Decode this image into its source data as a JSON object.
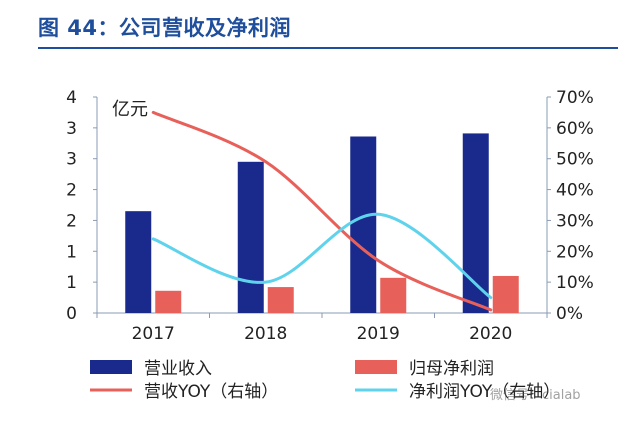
{
  "header": {
    "title": "图 44：公司营收及净利润"
  },
  "watermark": {
    "text": "微信号：cialab"
  },
  "chart_data": {
    "type": "bar",
    "categories": [
      "2017",
      "2018",
      "2019",
      "2020"
    ],
    "unit_label": "亿元",
    "y_left": {
      "min": 0,
      "max": 3.5,
      "tick_values": [
        0,
        0.5,
        1,
        1.5,
        2,
        2.5,
        3,
        3.5
      ],
      "tick_labels": [
        "0",
        "1",
        "1",
        "2",
        "2",
        "3",
        "3",
        "4"
      ]
    },
    "y_right": {
      "min": 0,
      "max": 70,
      "tick_values": [
        0,
        10,
        20,
        30,
        40,
        50,
        60,
        70
      ],
      "tick_labels": [
        "0%",
        "10%",
        "20%",
        "30%",
        "40%",
        "50%",
        "60%",
        "70%"
      ]
    },
    "series": [
      {
        "name": "营业收入",
        "kind": "bar",
        "axis": "left",
        "color": "#1a2a8c",
        "values": [
          1.65,
          2.45,
          2.86,
          2.91
        ]
      },
      {
        "name": "归母净利润",
        "kind": "bar",
        "axis": "left",
        "color": "#e8605a",
        "values": [
          0.36,
          0.42,
          0.57,
          0.6
        ]
      },
      {
        "name": "营收YOY（右轴）",
        "kind": "line",
        "axis": "right",
        "color": "#e8605a",
        "values": [
          65,
          49,
          17,
          1
        ]
      },
      {
        "name": "净利润YOY（右轴）",
        "kind": "line",
        "axis": "right",
        "color": "#5fd3ec",
        "values": [
          24,
          10,
          32,
          5
        ]
      }
    ],
    "legend": {
      "position": "bottom"
    },
    "grid": false
  }
}
